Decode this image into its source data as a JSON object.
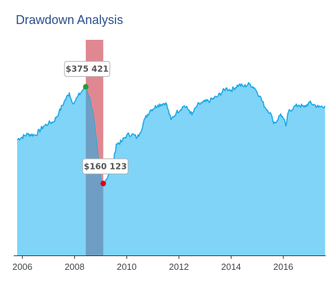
{
  "title": "Drawdown Analysis",
  "colors": {
    "title": "#2b4f8c",
    "area_fill": "#7fd4f7",
    "line": "#1aa6e3",
    "drawdown_band": "#e08891",
    "drawdown_overlap": "#6f9ec5",
    "peak_marker": "#1a9e3a",
    "trough_marker": "#d9001b",
    "axis": "#333333"
  },
  "chart_data": {
    "type": "area",
    "title": "Drawdown Analysis",
    "xlabel": "",
    "ylabel": "",
    "xlim": [
      2005.8,
      2017.6
    ],
    "ylim": [
      0,
      480000
    ],
    "x_ticks": [
      "2006",
      "2008",
      "2010",
      "2012",
      "2014",
      "2016"
    ],
    "grid": false,
    "series": [
      {
        "points": [
          [
            2005.8,
            258000
          ],
          [
            2006.2,
            270000
          ],
          [
            2006.5,
            268000
          ],
          [
            2006.8,
            287000
          ],
          [
            2007.0,
            294000
          ],
          [
            2007.2,
            298000
          ],
          [
            2007.4,
            318000
          ],
          [
            2007.6,
            342000
          ],
          [
            2007.8,
            362000
          ],
          [
            2007.9,
            342000
          ],
          [
            2008.0,
            342000
          ],
          [
            2008.1,
            352000
          ],
          [
            2008.3,
            367000
          ],
          [
            2008.43,
            375421
          ],
          [
            2008.6,
            345000
          ],
          [
            2008.7,
            320000
          ],
          [
            2008.8,
            270000
          ],
          [
            2008.9,
            220000
          ],
          [
            2009.0,
            170000
          ],
          [
            2009.05,
            162000
          ],
          [
            2009.1,
            160123
          ],
          [
            2009.2,
            168000
          ],
          [
            2009.3,
            180000
          ],
          [
            2009.4,
            192000
          ],
          [
            2009.5,
            210000
          ],
          [
            2009.6,
            248000
          ],
          [
            2009.8,
            253000
          ],
          [
            2010.0,
            268000
          ],
          [
            2010.2,
            270000
          ],
          [
            2010.4,
            262000
          ],
          [
            2010.5,
            272000
          ],
          [
            2010.7,
            305000
          ],
          [
            2010.9,
            323000
          ],
          [
            2011.2,
            335000
          ],
          [
            2011.5,
            340000
          ],
          [
            2011.7,
            302000
          ],
          [
            2011.9,
            318000
          ],
          [
            2012.2,
            333000
          ],
          [
            2012.4,
            323000
          ],
          [
            2012.5,
            313000
          ],
          [
            2012.7,
            334000
          ],
          [
            2012.9,
            340000
          ],
          [
            2013.2,
            345000
          ],
          [
            2013.5,
            355000
          ],
          [
            2013.8,
            372000
          ],
          [
            2014.0,
            368000
          ],
          [
            2014.3,
            380000
          ],
          [
            2014.5,
            376000
          ],
          [
            2014.7,
            382000
          ],
          [
            2014.9,
            373000
          ],
          [
            2015.1,
            355000
          ],
          [
            2015.3,
            330000
          ],
          [
            2015.5,
            318000
          ],
          [
            2015.6,
            300000
          ],
          [
            2015.7,
            295000
          ],
          [
            2015.9,
            315000
          ],
          [
            2016.0,
            305000
          ],
          [
            2016.1,
            288000
          ],
          [
            2016.2,
            320000
          ],
          [
            2016.4,
            330000
          ],
          [
            2016.6,
            335000
          ],
          [
            2016.8,
            330000
          ],
          [
            2017.0,
            340000
          ],
          [
            2017.2,
            335000
          ],
          [
            2017.35,
            330000
          ],
          [
            2017.6,
            333000
          ]
        ]
      }
    ],
    "drawdown_period": {
      "start": 2008.43,
      "end": 2009.1
    },
    "annotations": [
      {
        "label": "$375 421",
        "x": 2008.43,
        "y": 375421,
        "marker": "peak"
      },
      {
        "label": "$160 123",
        "x": 2009.1,
        "y": 160123,
        "marker": "trough"
      }
    ]
  }
}
